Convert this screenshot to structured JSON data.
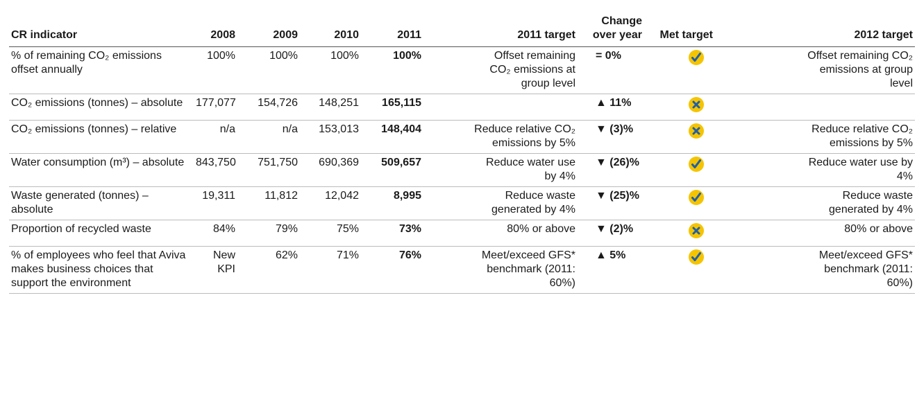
{
  "table": {
    "header": [
      "CR indicator",
      "2008",
      "2009",
      "2010",
      "2011",
      "2011 target",
      "Change over year",
      "Met target",
      "2012 target"
    ],
    "rows": [
      {
        "indicator": "% of remaining CO₂ emissions offset annually",
        "values": [
          "100%",
          "100%",
          "100%",
          "100%"
        ],
        "target_2011": "Offset remaining CO₂ emissions at group level",
        "change": "= 0%",
        "met": true,
        "target_2012": "Offset remaining CO₂ emissions at group level"
      },
      {
        "indicator": "CO₂ emissions (tonnes) – absolute",
        "values": [
          "177,077",
          "154,726",
          "148,251",
          "165,115"
        ],
        "target_2011": null,
        "change": "▲ 11%",
        "met": false,
        "target_2012": null
      },
      {
        "indicator": "CO₂ emissions (tonnes) – relative",
        "values": [
          "n/a",
          "n/a",
          "153,013",
          "148,404"
        ],
        "target_2011": "Reduce relative CO₂ emissions by 5%",
        "change": "▼ (3)%",
        "met": false,
        "target_2012": "Reduce relative CO₂ emissions by 5%"
      },
      {
        "indicator": "Water consumption (m³) – absolute",
        "values": [
          "843,750",
          "751,750",
          "690,369",
          "509,657"
        ],
        "target_2011": "Reduce water use by 4%",
        "change": "▼ (26)%",
        "met": true,
        "target_2012": "Reduce water use by 4%"
      },
      {
        "indicator": "Waste generated (tonnes) – absolute",
        "values": [
          "19,311",
          "11,812",
          "12,042",
          "8,995"
        ],
        "target_2011": "Reduce waste generated by 4%",
        "change": "▼ (25)%",
        "met": true,
        "target_2012": "Reduce waste generated by 4%"
      },
      {
        "indicator": "Proportion of recycled waste",
        "values": [
          "84%",
          "79%",
          "75%",
          "73%"
        ],
        "target_2011": "80% or above",
        "change": "▼ (2)%",
        "met": false,
        "target_2012": "80% or above"
      },
      {
        "indicator": "% of employees who feel that Aviva makes business choices that support the environment",
        "values": [
          "New KPI",
          "62%",
          "71%",
          "76%"
        ],
        "target_2011": "Meet/exceed GFS* benchmark (2011: 60%)",
        "change": "▲ 5%",
        "met": true,
        "target_2012": "Meet/exceed GFS* benchmark (2011: 60%)"
      }
    ]
  }
}
